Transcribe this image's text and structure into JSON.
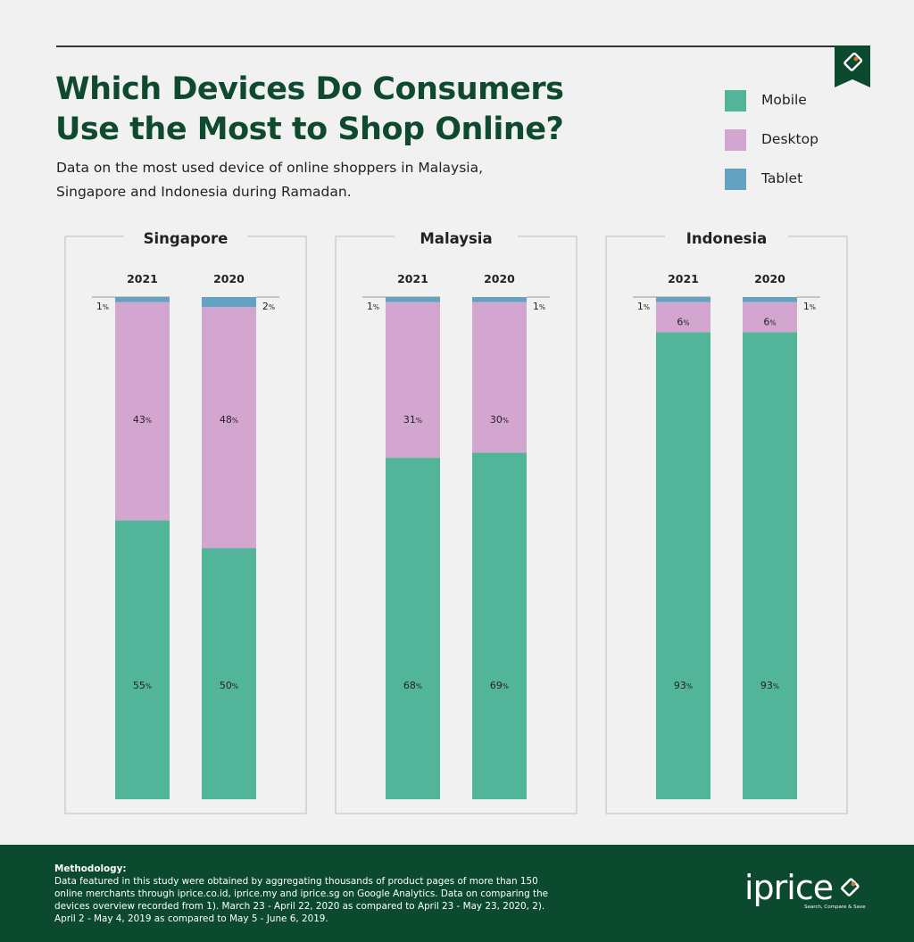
{
  "header": {
    "title": "Which Devices Do Consumers Use the Most to Shop Online?",
    "subtitle": "Data on the most used device of online shoppers in Malaysia, Singapore and Indonesia during Ramadan."
  },
  "legend": [
    {
      "label": "Mobile",
      "color": "#52b59a"
    },
    {
      "label": "Desktop",
      "color": "#d2a6cf"
    },
    {
      "label": "Tablet",
      "color": "#63a3c1"
    }
  ],
  "chart_data": [
    {
      "type": "bar",
      "stacked": true,
      "title": "Singapore",
      "categories": [
        "2021",
        "2020"
      ],
      "series": [
        {
          "name": "Mobile",
          "values": [
            55,
            50
          ]
        },
        {
          "name": "Desktop",
          "values": [
            43,
            48
          ]
        },
        {
          "name": "Tablet",
          "values": [
            1,
            2
          ]
        }
      ],
      "ylim": [
        0,
        100
      ]
    },
    {
      "type": "bar",
      "stacked": true,
      "title": "Malaysia",
      "categories": [
        "2021",
        "2020"
      ],
      "series": [
        {
          "name": "Mobile",
          "values": [
            68,
            69
          ]
        },
        {
          "name": "Desktop",
          "values": [
            31,
            30
          ]
        },
        {
          "name": "Tablet",
          "values": [
            1,
            1
          ]
        }
      ],
      "ylim": [
        0,
        100
      ]
    },
    {
      "type": "bar",
      "stacked": true,
      "title": "Indonesia",
      "categories": [
        "2021",
        "2020"
      ],
      "series": [
        {
          "name": "Mobile",
          "values": [
            93,
            93
          ]
        },
        {
          "name": "Desktop",
          "values": [
            6,
            6
          ]
        },
        {
          "name": "Tablet",
          "values": [
            1,
            1
          ]
        }
      ],
      "ylim": [
        0,
        100
      ]
    }
  ],
  "colors": {
    "mobile": "#52b59a",
    "desktop": "#d2a6cf",
    "tablet": "#63a3c1",
    "brand_green": "#0c4a2f"
  },
  "footer": {
    "methodology_title": "Methodology:",
    "methodology_text": "Data featured in this study were obtained by aggregating thousands of product pages of more than 150 online merchants through iprice.co.id, iprice.my and iprice.sg on Google Analytics. Data on comparing the devices overview recorded from 1). March 23 - April 22, 2020 as compared to April 23 - May 23, 2020, 2). April 2 - May 4, 2019 as compared to May 5 - June 6, 2019.",
    "brand_name": "iprice",
    "brand_tagline": "Search, Compare & Save"
  }
}
